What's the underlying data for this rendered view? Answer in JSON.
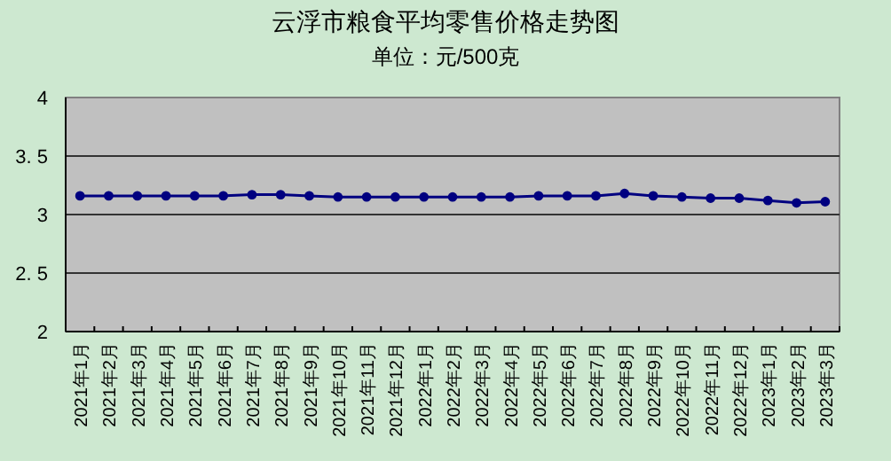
{
  "chart_data": {
    "type": "line",
    "title": "云浮市粮食平均零售价格走势图",
    "subtitle": "单位：元/500克",
    "categories": [
      "2021年1月",
      "2021年2月",
      "2021年3月",
      "2021年4月",
      "2021年5月",
      "2021年6月",
      "2021年7月",
      "2021年8月",
      "2021年9月",
      "2021年10月",
      "2021年11月",
      "2021年12月",
      "2022年1月",
      "2022年2月",
      "2022年3月",
      "2022年4月",
      "2022年5月",
      "2022年6月",
      "2022年7月",
      "2022年8月",
      "2022年9月",
      "2022年10月",
      "2022年11月",
      "2022年12月",
      "2023年1月",
      "2023年2月",
      "2023年3月"
    ],
    "series": [
      {
        "color": "#000080",
        "values": [
          3.16,
          3.16,
          3.16,
          3.16,
          3.16,
          3.16,
          3.17,
          3.17,
          3.16,
          3.15,
          3.15,
          3.15,
          3.15,
          3.15,
          3.15,
          3.15,
          3.16,
          3.16,
          3.16,
          3.18,
          3.16,
          3.15,
          3.14,
          3.14,
          3.12,
          3.1,
          3.11
        ]
      }
    ],
    "ylim": [
      2,
      4
    ],
    "yticks": [
      2,
      {
        "value": 2.5,
        "label": "2. 5"
      },
      3,
      {
        "value": 3.5,
        "label": "3. 5"
      },
      4
    ],
    "grid": "y",
    "marker": "circle"
  }
}
